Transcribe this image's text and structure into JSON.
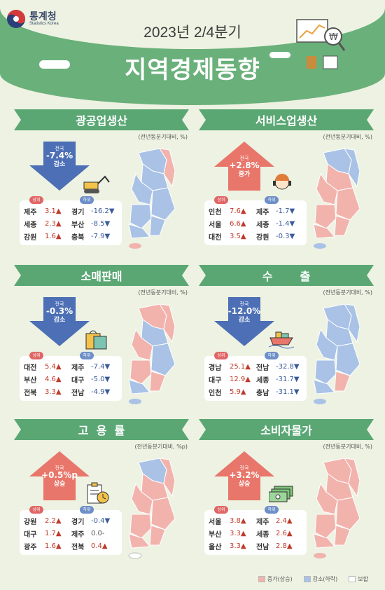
{
  "header": {
    "org_name": "통계청",
    "org_name_en": "Statistics Korea",
    "subtitle": "2023년 2/4분기",
    "title": "지역경제동향"
  },
  "sections": [
    {
      "title": "광공업생산",
      "unit": "(전년동분기대비, %)",
      "nation_label": "전국",
      "nation_value": "-7.4%",
      "nation_dir": "감소",
      "direction": "down",
      "icon": "excavator-icon",
      "top_label": "상위",
      "bottom_label": "하위",
      "rows": [
        {
          "up_region": "제주",
          "up_value": "3.1▲",
          "down_region": "경기",
          "down_value": "-16.2▼"
        },
        {
          "up_region": "세종",
          "up_value": "2.3▲",
          "down_region": "부산",
          "down_value": "-8.5▼"
        },
        {
          "up_region": "강원",
          "up_value": "1.6▲",
          "down_region": "충북",
          "down_value": "-7.9▼"
        }
      ]
    },
    {
      "title": "서비스업생산",
      "unit": "(전년동분기대비, %)",
      "nation_label": "전국",
      "nation_value": "+2.8%",
      "nation_dir": "증가",
      "direction": "up",
      "icon": "headset-worker-icon",
      "top_label": "상위",
      "bottom_label": "하위",
      "rows": [
        {
          "up_region": "인천",
          "up_value": "7.6▲",
          "down_region": "제주",
          "down_value": "-1.7▼"
        },
        {
          "up_region": "서울",
          "up_value": "6.6▲",
          "down_region": "세종",
          "down_value": "-1.4▼"
        },
        {
          "up_region": "대전",
          "up_value": "3.5▲",
          "down_region": "강원",
          "down_value": "-0.3▼"
        }
      ]
    },
    {
      "title": "소매판매",
      "unit": "(전년동분기대비, %)",
      "nation_label": "전국",
      "nation_value": "-0.3%",
      "nation_dir": "감소",
      "direction": "down",
      "icon": "shopping-bag-icon",
      "top_label": "상위",
      "bottom_label": "하위",
      "rows": [
        {
          "up_region": "대전",
          "up_value": "5.4▲",
          "down_region": "제주",
          "down_value": "-7.4▼"
        },
        {
          "up_region": "부산",
          "up_value": "4.6▲",
          "down_region": "대구",
          "down_value": "-5.0▼"
        },
        {
          "up_region": "전북",
          "up_value": "3.3▲",
          "down_region": "전남",
          "down_value": "-4.9▼"
        }
      ]
    },
    {
      "title": "수       출",
      "unit": "(전년동분기대비, %)",
      "nation_label": "전국",
      "nation_value": "-12.0%",
      "nation_dir": "감소",
      "direction": "down",
      "icon": "cargo-ship-icon",
      "top_label": "상위",
      "bottom_label": "하위",
      "rows": [
        {
          "up_region": "경남",
          "up_value": "25.1▲",
          "down_region": "전남",
          "down_value": "-32.8▼"
        },
        {
          "up_region": "대구",
          "up_value": "12.9▲",
          "down_region": "세종",
          "down_value": "-31.7▼"
        },
        {
          "up_region": "인천",
          "up_value": "5.9▲",
          "down_region": "충남",
          "down_value": "-31.1▼"
        }
      ]
    },
    {
      "title": "고  용  률",
      "unit": "(전년동분기대비, %p)",
      "nation_label": "전국",
      "nation_value": "+0.5%p",
      "nation_dir": "상승",
      "direction": "up",
      "icon": "clipboard-clock-icon",
      "top_label": "상위",
      "bottom_label": "하위",
      "rows": [
        {
          "up_region": "강원",
          "up_value": "2.2▲",
          "down_region": "경기",
          "down_value": "-0.4▼"
        },
        {
          "up_region": "대구",
          "up_value": "1.7▲",
          "down_region": "제주",
          "down_value": "0.0-"
        },
        {
          "up_region": "광주",
          "up_value": "1.6▲",
          "down_region": "전북",
          "down_value": "0.4▲"
        }
      ]
    },
    {
      "title": "소비자물가",
      "unit": "(전년동분기대비, %)",
      "nation_label": "전국",
      "nation_value": "+3.2%",
      "nation_dir": "상승",
      "direction": "up",
      "icon": "money-stack-icon",
      "top_label": "상위",
      "bottom_label": "하위",
      "rows": [
        {
          "up_region": "서울",
          "up_value": "3.8▲",
          "down_region": "제주",
          "down_value": "2.4▲"
        },
        {
          "up_region": "부산",
          "up_value": "3.3▲",
          "down_region": "세종",
          "down_value": "2.6▲"
        },
        {
          "up_region": "울산",
          "up_value": "3.3▲",
          "down_region": "전남",
          "down_value": "2.8▲"
        }
      ]
    }
  ],
  "legend": {
    "increase": "증가(상승)",
    "decrease": "감소(하락)",
    "flat": "보합"
  },
  "colors": {
    "increase": "#f2b3ad",
    "decrease": "#a9c2e6",
    "banner": "#5aa774",
    "up_arrow": "#e8766a",
    "down_arrow": "#4c6fb5"
  }
}
